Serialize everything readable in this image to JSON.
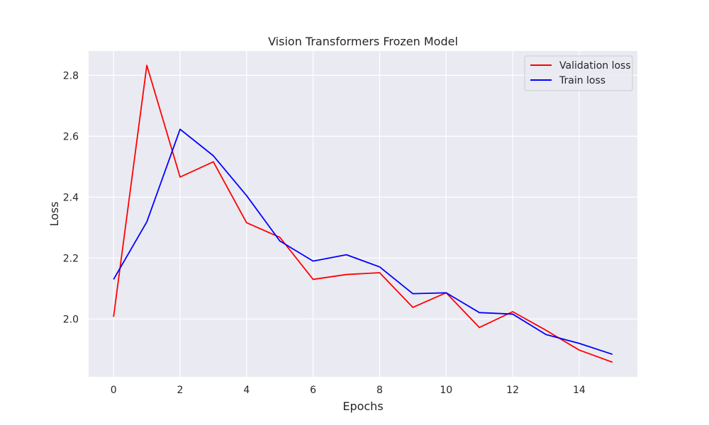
{
  "chart_data": {
    "type": "line",
    "title": "Vision Transformers Frozen Model",
    "xlabel": "Epochs",
    "ylabel": "Loss",
    "x": [
      0,
      1,
      2,
      3,
      4,
      5,
      6,
      7,
      8,
      9,
      10,
      11,
      12,
      13,
      14,
      15
    ],
    "xticks": [
      0,
      2,
      4,
      6,
      8,
      10,
      12,
      14
    ],
    "yticks": [
      2.0,
      2.2,
      2.4,
      2.6,
      2.8
    ],
    "ytick_labels": [
      "2.0",
      "2.2",
      "2.4",
      "2.6",
      "2.8"
    ],
    "xlim": [
      -0.75,
      15.75
    ],
    "ylim": [
      1.81,
      2.88
    ],
    "grid": true,
    "legend_position": "upper-right",
    "series": [
      {
        "name": "Validation loss",
        "color": "#ff0000",
        "values": [
          2.007,
          2.833,
          2.466,
          2.516,
          2.316,
          2.268,
          2.13,
          2.146,
          2.152,
          2.038,
          2.086,
          1.972,
          2.024,
          1.963,
          1.898,
          1.858
        ]
      },
      {
        "name": "Train loss",
        "color": "#0000ff",
        "values": [
          2.13,
          2.319,
          2.623,
          2.536,
          2.405,
          2.256,
          2.19,
          2.211,
          2.171,
          2.083,
          2.086,
          2.021,
          2.016,
          1.949,
          1.92,
          1.884
        ]
      }
    ]
  },
  "colors": {
    "plot_background": "#eaeaf2",
    "grid": "#ffffff",
    "text": "#262626"
  }
}
